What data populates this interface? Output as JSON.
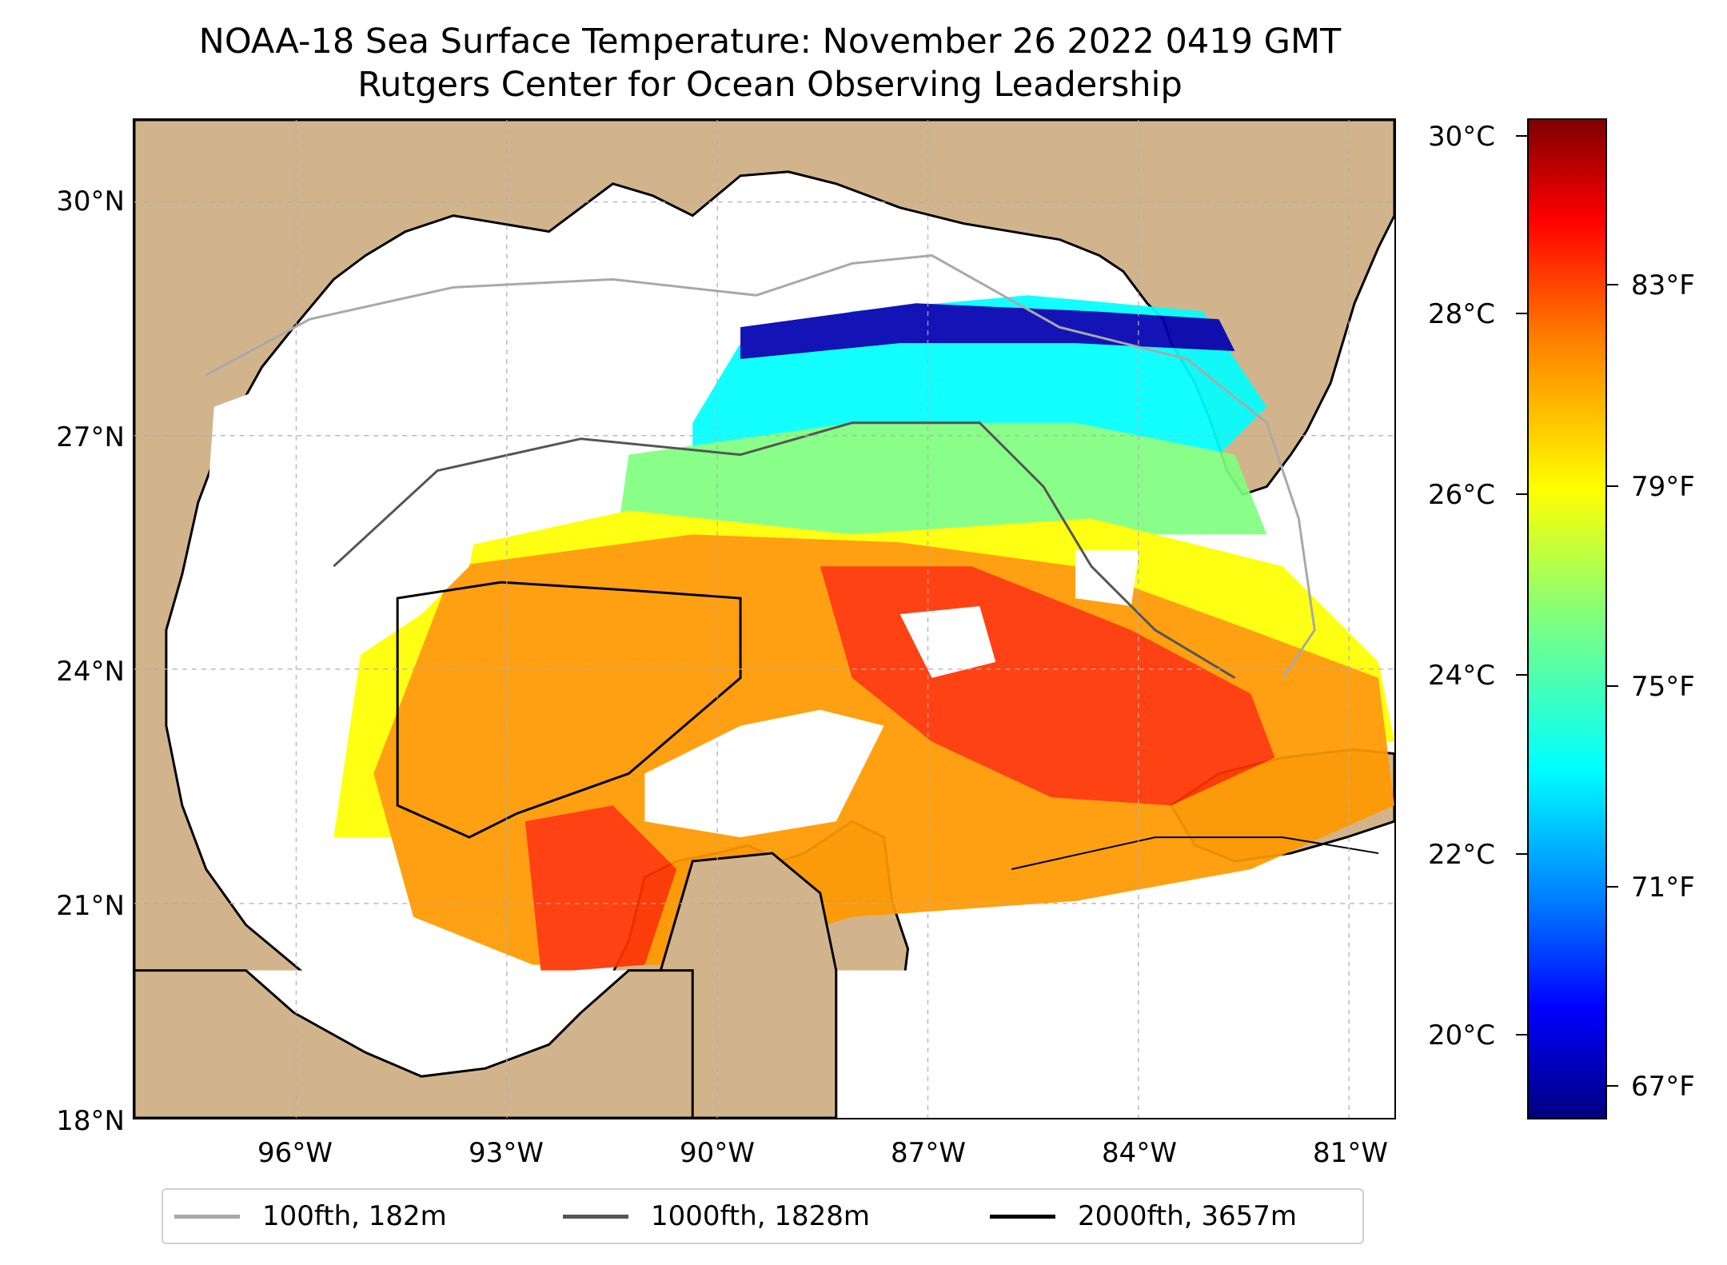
{
  "title": {
    "line1": "NOAA-18 Sea Surface Temperature: November 26 2022 0419 GMT",
    "line2": "Rutgers Center for Ocean Observing Leadership"
  },
  "map": {
    "lat_ticks": [
      "30°N",
      "27°N",
      "24°N",
      "21°N",
      "18°N"
    ],
    "lon_ticks": [
      "96°W",
      "93°W",
      "90°W",
      "87°W",
      "84°W",
      "81°W"
    ],
    "colors": {
      "land": "#d2b48c",
      "no_data": "#ffffff",
      "grid": "#b0b0b0",
      "coast": "#000000",
      "lakes": "#9db7e0"
    }
  },
  "colorbar": {
    "celsius_ticks": [
      "30°C",
      "28°C",
      "26°C",
      "24°C",
      "22°C",
      "20°C"
    ],
    "fahrenheit_ticks": [
      "83°F",
      "79°F",
      "75°F",
      "71°F",
      "67°F"
    ],
    "colormap": "jet"
  },
  "legend": {
    "items": [
      {
        "label": "100fth, 182m",
        "color": "#a9a9a9"
      },
      {
        "label": "1000fth, 1828m",
        "color": "#555555"
      },
      {
        "label": "2000fth, 3657m",
        "color": "#000000"
      }
    ]
  }
}
